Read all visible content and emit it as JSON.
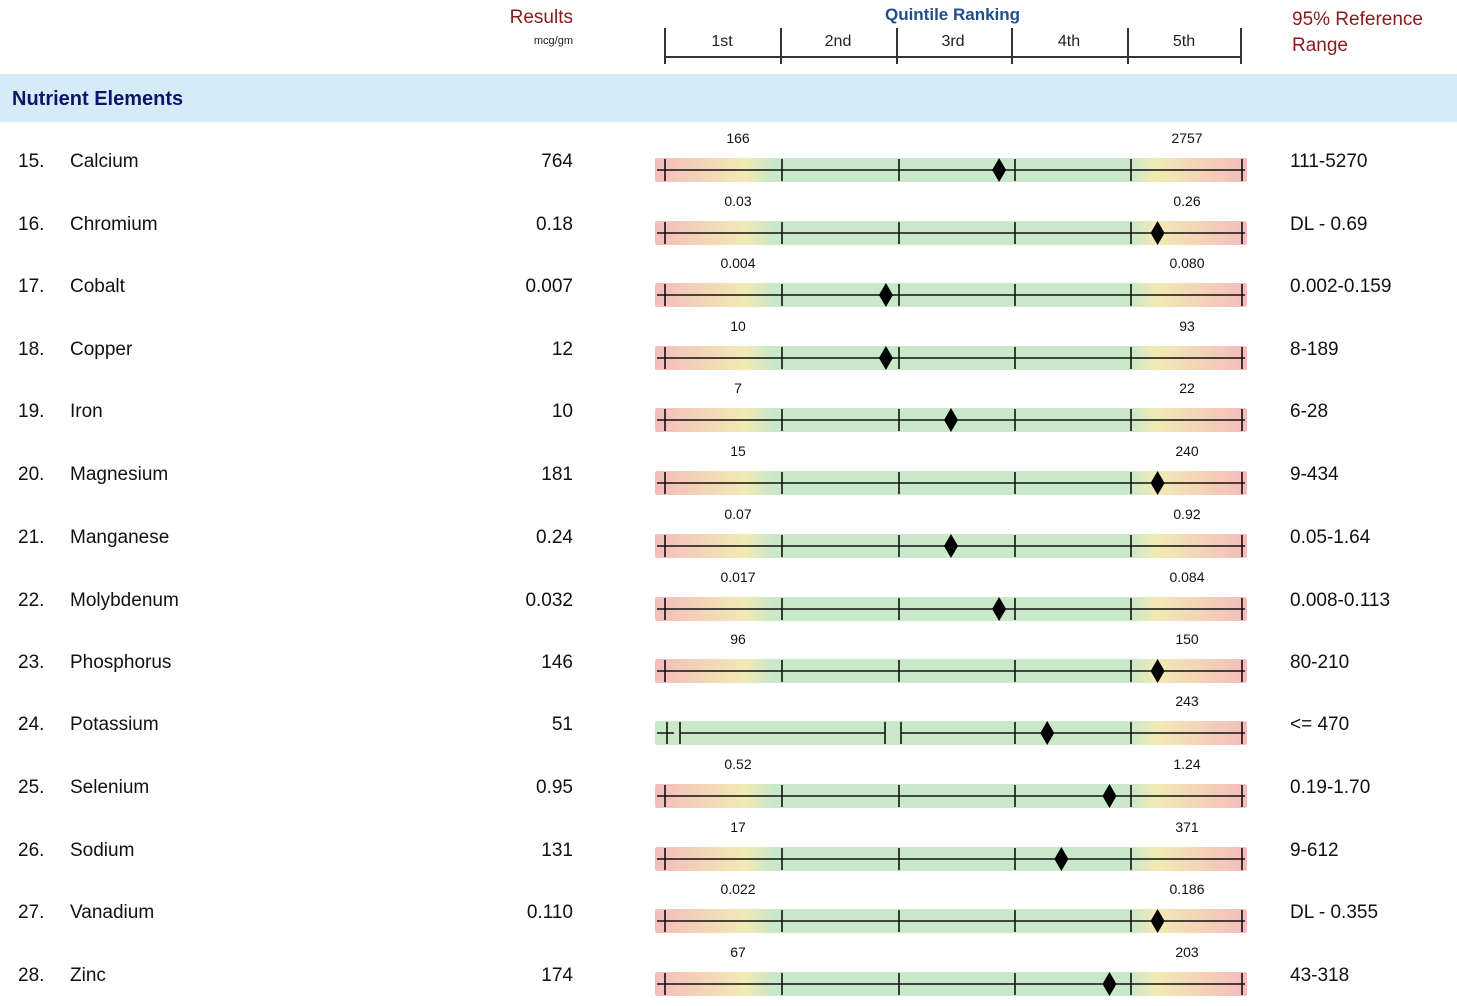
{
  "header": {
    "results_label": "Results",
    "results_unit": "mcg/gm",
    "quintile_title": "Quintile Ranking",
    "quintiles": [
      "1st",
      "2nd",
      "3rd",
      "4th",
      "5th"
    ],
    "reference_label_1": "95% Reference",
    "reference_label_2": "Range"
  },
  "section": {
    "title": "Nutrient Elements"
  },
  "rows": [
    {
      "num": "15.",
      "name": "Calcium",
      "value": "764",
      "low": "166",
      "high": "2757",
      "ref": "111-5270",
      "position": 0.585,
      "style": "normal"
    },
    {
      "num": "16.",
      "name": "Chromium",
      "value": "0.18",
      "low": "0.03",
      "high": "0.26",
      "ref": "DL - 0.69",
      "position": 0.865,
      "style": "normal"
    },
    {
      "num": "17.",
      "name": "Cobalt",
      "value": "0.007",
      "low": "0.004",
      "high": "0.080",
      "ref": "0.002-0.159",
      "position": 0.385,
      "style": "normal"
    },
    {
      "num": "18.",
      "name": "Copper",
      "value": "12",
      "low": "10",
      "high": "93",
      "ref": "8-189",
      "position": 0.385,
      "style": "normal"
    },
    {
      "num": "19.",
      "name": "Iron",
      "value": "10",
      "low": "7",
      "high": "22",
      "ref": "6-28",
      "position": 0.5,
      "style": "normal"
    },
    {
      "num": "20.",
      "name": "Magnesium",
      "value": "181",
      "low": "15",
      "high": "240",
      "ref": "9-434",
      "position": 0.865,
      "style": "normal"
    },
    {
      "num": "21.",
      "name": "Manganese",
      "value": "0.24",
      "low": "0.07",
      "high": "0.92",
      "ref": "0.05-1.64",
      "position": 0.5,
      "style": "normal"
    },
    {
      "num": "22.",
      "name": "Molybdenum",
      "value": "0.032",
      "low": "0.017",
      "high": "0.084",
      "ref": "0.008-0.113",
      "position": 0.585,
      "style": "normal"
    },
    {
      "num": "23.",
      "name": "Phosphorus",
      "value": "146",
      "low": "96",
      "high": "150",
      "ref": "80-210",
      "position": 0.865,
      "style": "normal"
    },
    {
      "num": "24.",
      "name": "Potassium",
      "value": "51",
      "low": "",
      "high": "243",
      "ref": "<= 470",
      "position": 0.67,
      "style": "upper"
    },
    {
      "num": "25.",
      "name": "Selenium",
      "value": "0.95",
      "low": "0.52",
      "high": "1.24",
      "ref": "0.19-1.70",
      "position": 0.78,
      "style": "normal"
    },
    {
      "num": "26.",
      "name": "Sodium",
      "value": "131",
      "low": "17",
      "high": "371",
      "ref": "9-612",
      "position": 0.695,
      "style": "normal"
    },
    {
      "num": "27.",
      "name": "Vanadium",
      "value": "0.110",
      "low": "0.022",
      "high": "0.186",
      "ref": "DL - 0.355",
      "position": 0.865,
      "style": "normal"
    },
    {
      "num": "28.",
      "name": "Zinc",
      "value": "174",
      "low": "67",
      "high": "203",
      "ref": "43-318",
      "position": 0.78,
      "style": "normal"
    }
  ]
}
